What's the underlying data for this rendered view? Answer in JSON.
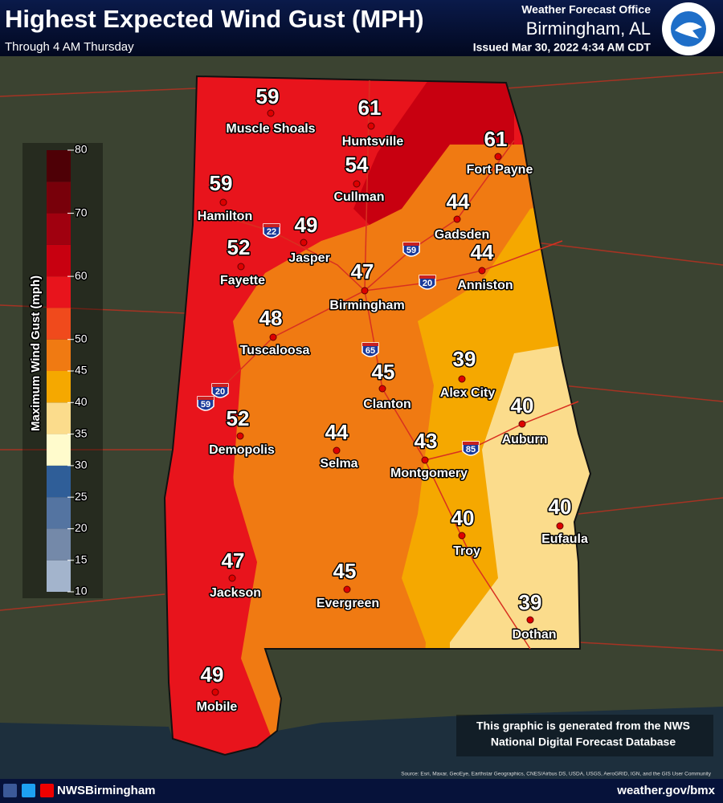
{
  "header": {
    "title": "Highest Expected Wind Gust (MPH)",
    "subtitle": "Through 4 AM Thursday",
    "office": "Weather Forecast Office",
    "location": "Birmingham, AL",
    "issued": "Issued Mar 30, 2022 4:34 AM CDT"
  },
  "legend": {
    "title": "Maximum Wind Gust (mph)",
    "ticks": [
      10,
      15,
      20,
      25,
      30,
      35,
      40,
      45,
      50,
      60,
      70,
      80
    ],
    "colors": [
      "#a3b4cc",
      "#7489a9",
      "#5474a1",
      "#2f5e98",
      "#fffbcc",
      "#fbdc8c",
      "#f5a800",
      "#f07a12",
      "#f04a1c",
      "#e8141c",
      "#c80010",
      "#a0000f",
      "#78000a",
      "#4e0006"
    ]
  },
  "cities": [
    {
      "name": "Muscle Shoals",
      "value": 59
    },
    {
      "name": "Huntsville",
      "value": 61
    },
    {
      "name": "Fort Payne",
      "value": 61
    },
    {
      "name": "Cullman",
      "value": 54
    },
    {
      "name": "Hamilton",
      "value": 59
    },
    {
      "name": "Jasper",
      "value": 49
    },
    {
      "name": "Gadsden",
      "value": 44
    },
    {
      "name": "Fayette",
      "value": 52
    },
    {
      "name": "Anniston",
      "value": 44
    },
    {
      "name": "Birmingham",
      "value": 47
    },
    {
      "name": "Tuscaloosa",
      "value": 48
    },
    {
      "name": "Alex City",
      "value": 39
    },
    {
      "name": "Clanton",
      "value": 45
    },
    {
      "name": "Auburn",
      "value": 40
    },
    {
      "name": "Demopolis",
      "value": 52
    },
    {
      "name": "Selma",
      "value": 44
    },
    {
      "name": "Montgomery",
      "value": 43
    },
    {
      "name": "Troy",
      "value": 40
    },
    {
      "name": "Eufaula",
      "value": 40
    },
    {
      "name": "Jackson",
      "value": 47
    },
    {
      "name": "Evergreen",
      "value": 45
    },
    {
      "name": "Dothan",
      "value": 39
    },
    {
      "name": "Mobile",
      "value": 49
    }
  ],
  "highways": [
    "22",
    "59",
    "20",
    "65",
    "20",
    "59",
    "85"
  ],
  "note": [
    "This graphic is generated from the NWS",
    "National Digital Forecast Database"
  ],
  "source": "Source: Esri, Maxar, GeoEye, Earthstar Geographics, CNES/Airbus DS, USDA, USGS, AeroGRID, IGN, and the GIS User Community",
  "footer": {
    "social": "NWSBirmingham",
    "url": "weather.gov/bmx"
  }
}
